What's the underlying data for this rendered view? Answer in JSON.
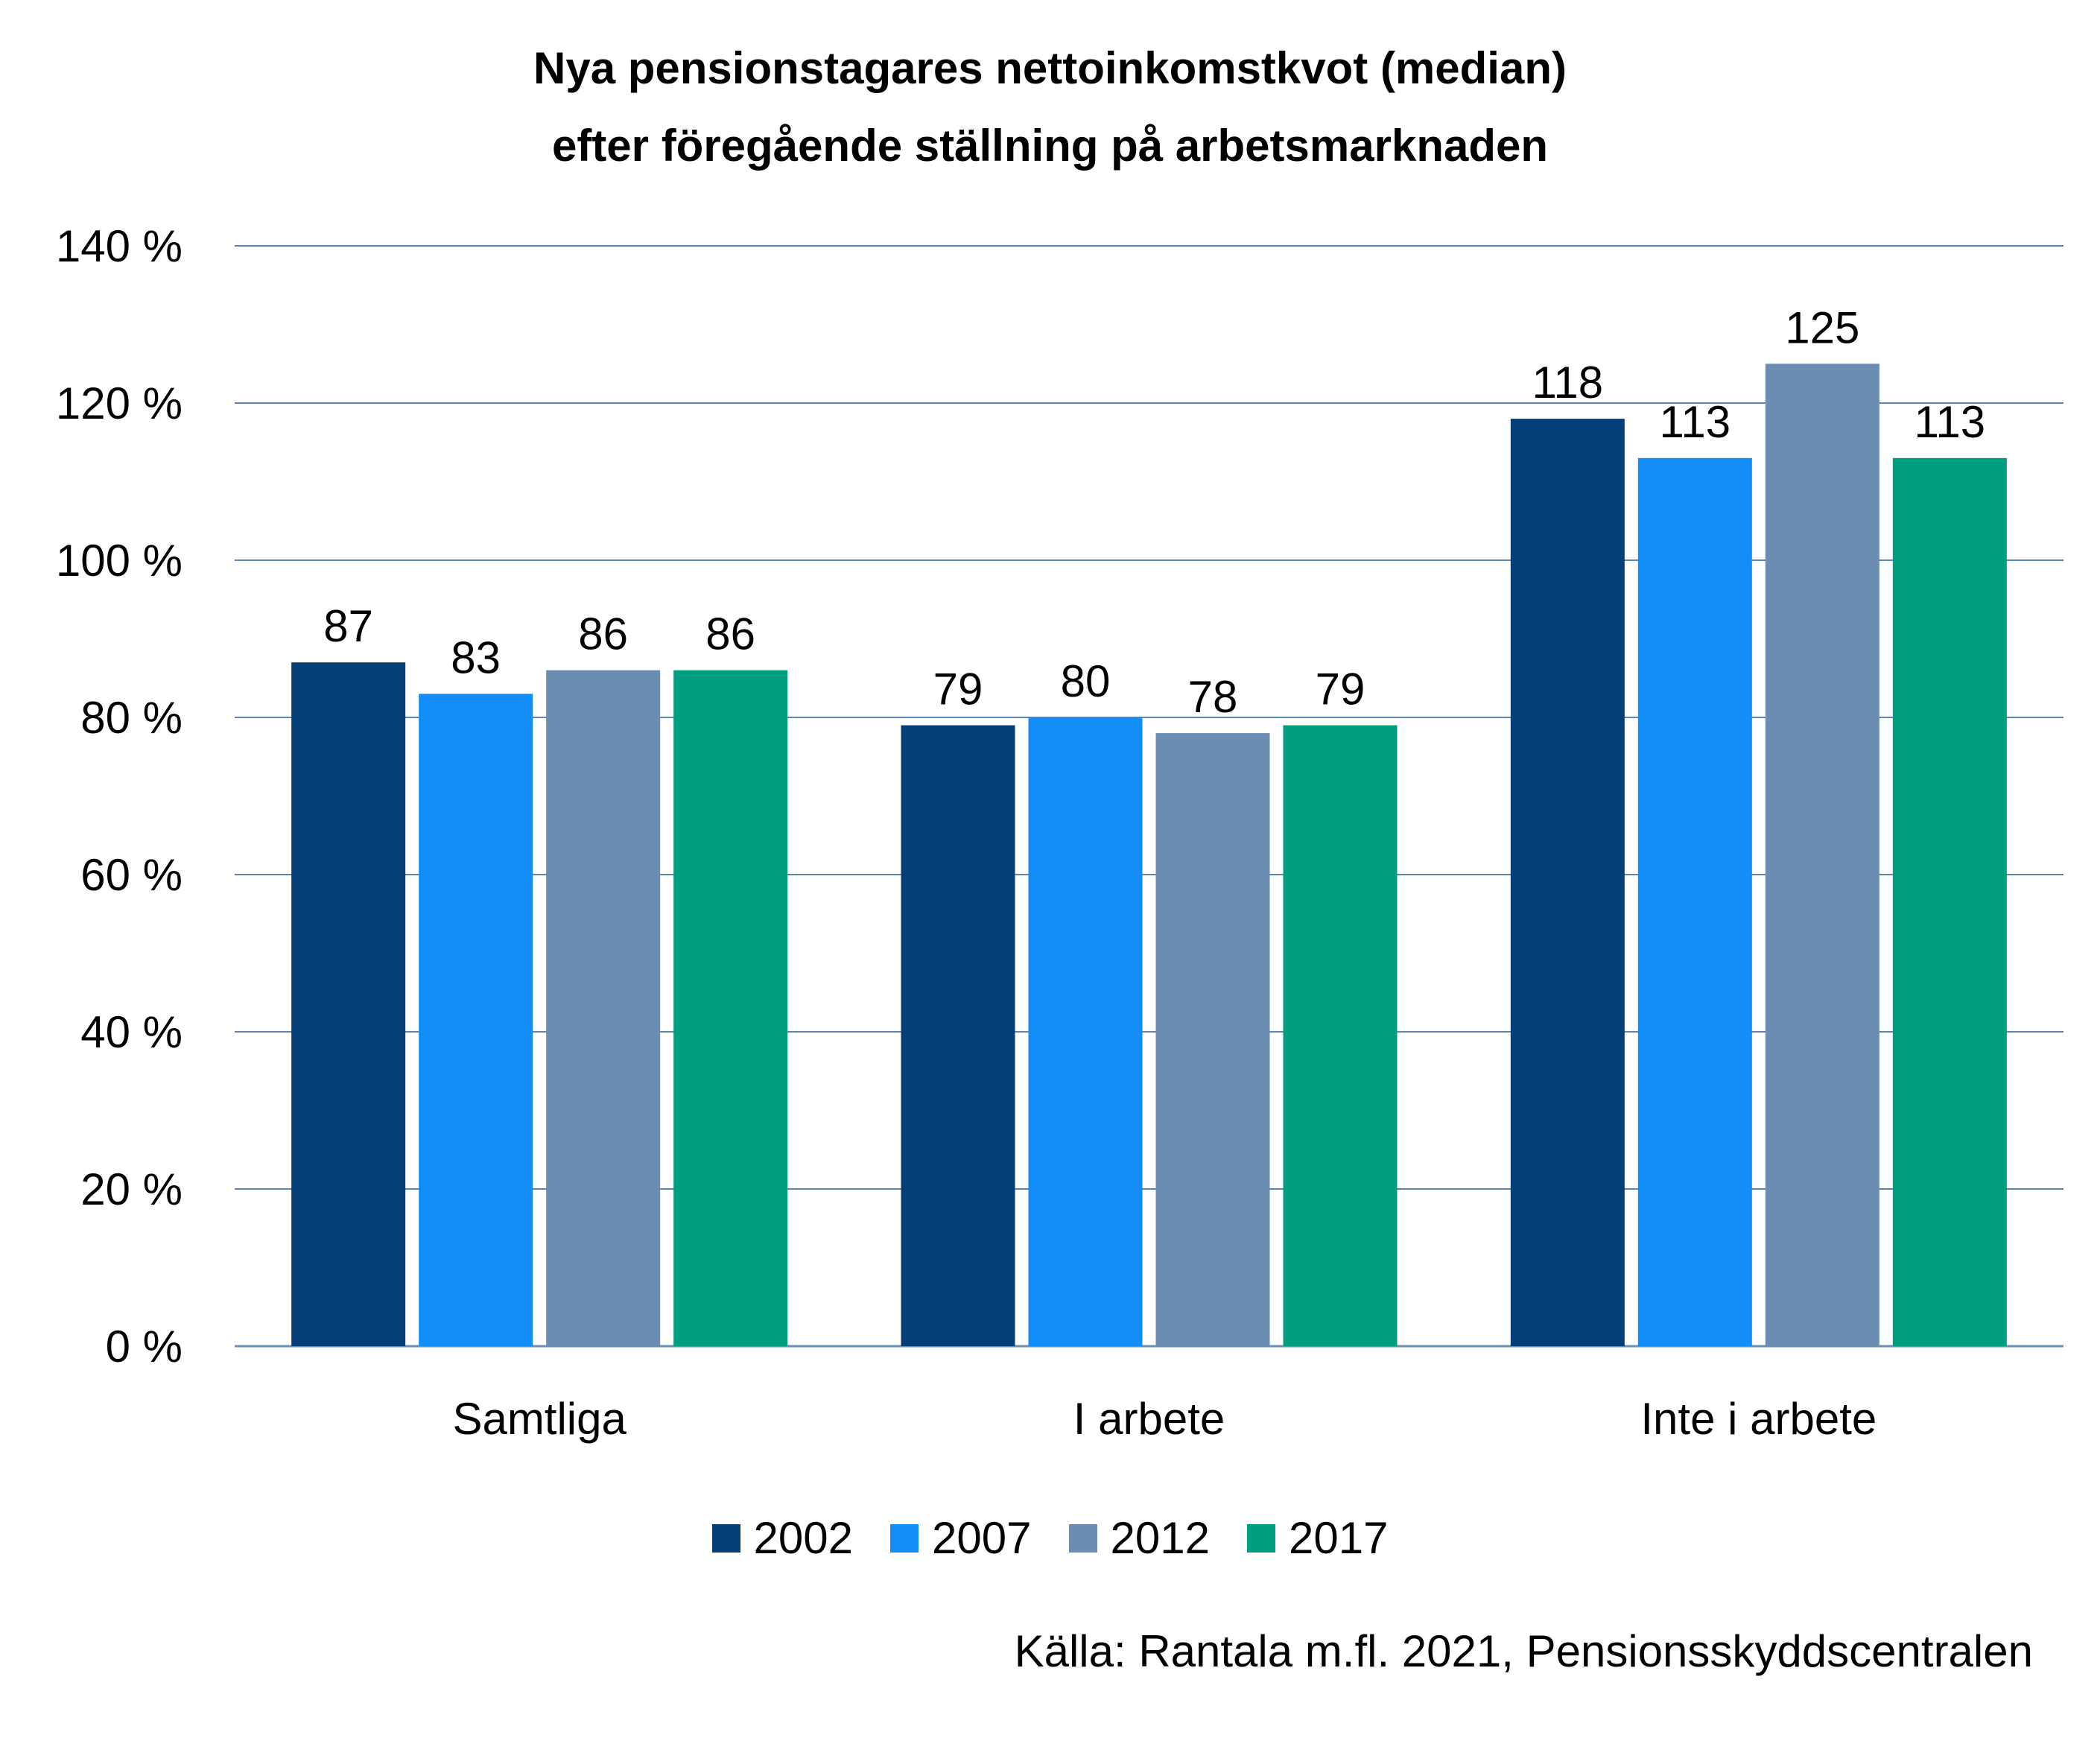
{
  "chart_data": {
    "type": "bar",
    "title": [
      "Nya pensionstagares nettoinkomstkvot (median)",
      "efter föregående ställning på arbetsmarknaden"
    ],
    "categories": [
      "Samtliga",
      "I arbete",
      "Inte i arbete"
    ],
    "series": [
      {
        "name": "2002",
        "color": "#063E78",
        "values": [
          87,
          79,
          118
        ]
      },
      {
        "name": "2007",
        "color": "#138EF8",
        "values": [
          83,
          80,
          113
        ]
      },
      {
        "name": "2012",
        "color": "#6A8DB1",
        "values": [
          86,
          78,
          125
        ]
      },
      {
        "name": "2017",
        "color": "#009E80",
        "values": [
          86,
          79,
          113
        ]
      }
    ],
    "ylim": [
      0,
      140
    ],
    "yticks": [
      0,
      20,
      40,
      60,
      80,
      100,
      120,
      140
    ],
    "ytick_labels": [
      "0 %",
      "20 %",
      "40 %",
      "60 %",
      "80 %",
      "100 %",
      "120 %",
      "140 %"
    ],
    "grid": true,
    "gridline_color": "#5B86B3",
    "legend_position": "bottom",
    "source": "Källa: Rantala m.fl. 2021, Pensionsskyddscentralen"
  }
}
